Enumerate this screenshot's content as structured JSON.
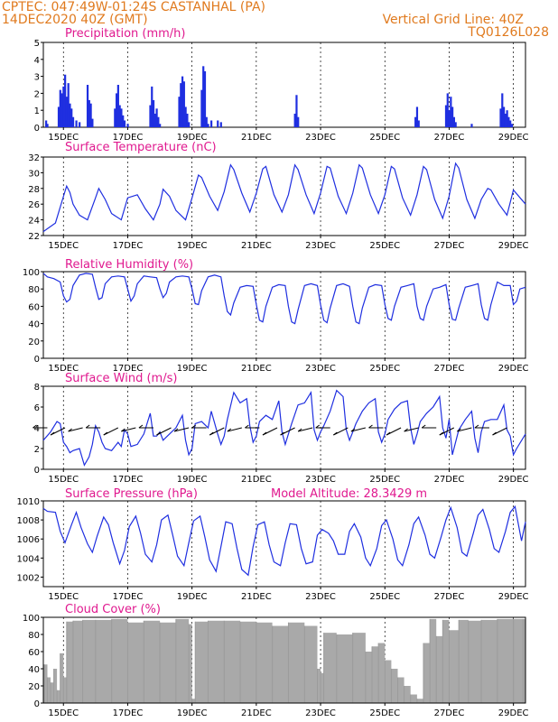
{
  "header": {
    "station": "CPTEC:   047:49W-01:24S   CASTANHAL (PA)",
    "run": "14DEC2020 40Z (GMT)",
    "grid_note": "Vertical Grid Line: 40Z",
    "code": "TQ0126L028"
  },
  "colors": {
    "header": "#e07a1e",
    "title": "#e0198f",
    "series": "#1f2fe0",
    "cloud": "#a9a9a9"
  },
  "chart_data": [
    {
      "type": "bar",
      "title": "Precipitation (mm/h)",
      "x_labels": [
        "15DEC",
        "17DEC",
        "19DEC",
        "21DEC",
        "23DEC",
        "25DEC",
        "27DEC",
        "29DEC"
      ],
      "x_unit": "days since 14DEC2020 00Z",
      "xlim": [
        0.375,
        15.375
      ],
      "ylim": [
        0,
        5
      ],
      "yticks": [
        "0",
        "1",
        "2",
        "3",
        "4",
        "5"
      ],
      "x": [
        0.46,
        0.5,
        0.85,
        0.9,
        0.95,
        1.0,
        1.05,
        1.1,
        1.15,
        1.2,
        1.25,
        1.3,
        1.4,
        1.5,
        1.75,
        1.8,
        1.85,
        1.9,
        2.6,
        2.65,
        2.7,
        2.75,
        2.8,
        2.85,
        2.9,
        3.0,
        3.7,
        3.75,
        3.8,
        3.85,
        3.9,
        3.95,
        4.0,
        4.6,
        4.65,
        4.7,
        4.75,
        4.8,
        4.85,
        4.9,
        5.3,
        5.35,
        5.4,
        5.45,
        5.5,
        5.6,
        5.8,
        5.9,
        8.2,
        8.25,
        8.3,
        11.95,
        12.0,
        12.05,
        12.9,
        12.95,
        13.0,
        13.05,
        13.1,
        13.15,
        13.2,
        13.7,
        14.6,
        14.65,
        14.7,
        14.75,
        14.8,
        14.85,
        14.9,
        14.95
      ],
      "values": [
        0.4,
        0.2,
        1.2,
        2.2,
        2.0,
        2.4,
        3.1,
        1.8,
        2.6,
        1.4,
        1.1,
        0.6,
        0.4,
        0.3,
        2.5,
        1.6,
        1.4,
        0.5,
        1.1,
        2.0,
        2.5,
        1.3,
        1.1,
        0.7,
        0.4,
        0.2,
        1.3,
        2.4,
        1.6,
        0.8,
        1.1,
        0.6,
        0.2,
        1.8,
        2.6,
        3.0,
        2.7,
        1.2,
        0.8,
        0.3,
        2.2,
        3.6,
        3.3,
        0.6,
        0.2,
        0.4,
        0.4,
        0.3,
        0.8,
        1.9,
        0.6,
        0.6,
        1.2,
        0.4,
        1.3,
        2.0,
        1.0,
        1.8,
        1.2,
        0.6,
        0.3,
        0.2,
        1.1,
        2.0,
        1.2,
        0.8,
        1.0,
        0.6,
        0.4,
        0.2
      ]
    },
    {
      "type": "line",
      "title": "Surface Temperature (nC)",
      "x_labels": [
        "15DEC",
        "17DEC",
        "19DEC",
        "21DEC",
        "23DEC",
        "25DEC",
        "27DEC",
        "29DEC"
      ],
      "x_unit": "days since 14DEC2020 00Z",
      "xlim": [
        0.375,
        15.375
      ],
      "ylim": [
        22,
        32
      ],
      "yticks": [
        "22",
        "24",
        "26",
        "28",
        "30",
        "32"
      ],
      "x": [
        0.375,
        0.75,
        1.0,
        1.1,
        1.2,
        1.3,
        1.5,
        1.75,
        2.0,
        2.1,
        2.3,
        2.5,
        2.8,
        3.0,
        3.3,
        3.55,
        3.8,
        4.0,
        4.1,
        4.3,
        4.5,
        4.8,
        5.0,
        5.2,
        5.3,
        5.55,
        5.8,
        6.0,
        6.2,
        6.3,
        6.55,
        6.8,
        7.0,
        7.2,
        7.3,
        7.55,
        7.8,
        8.0,
        8.2,
        8.3,
        8.55,
        8.8,
        9.0,
        9.2,
        9.3,
        9.55,
        9.8,
        10.0,
        10.2,
        10.3,
        10.55,
        10.8,
        11.0,
        11.2,
        11.3,
        11.55,
        11.8,
        12.0,
        12.2,
        12.3,
        12.55,
        12.8,
        13.0,
        13.2,
        13.3,
        13.55,
        13.8,
        14.0,
        14.2,
        14.3,
        14.55,
        14.8,
        15.0,
        15.375
      ],
      "values": [
        22.5,
        23.6,
        27.0,
        28.3,
        27.5,
        26.0,
        24.6,
        24.0,
        26.8,
        28.0,
        26.6,
        24.8,
        24.0,
        26.8,
        27.2,
        25.4,
        24.0,
        26.0,
        27.9,
        27.0,
        25.2,
        24.0,
        26.8,
        29.7,
        29.4,
        27.0,
        25.2,
        27.6,
        31.0,
        30.4,
        27.4,
        25.0,
        27.4,
        30.5,
        30.8,
        27.2,
        25.0,
        27.2,
        31.0,
        30.4,
        27.2,
        24.8,
        27.4,
        30.8,
        30.6,
        27.0,
        24.8,
        27.4,
        31.0,
        30.6,
        27.2,
        24.8,
        27.2,
        30.8,
        30.5,
        26.8,
        24.6,
        27.2,
        30.8,
        30.4,
        26.6,
        24.2,
        27.0,
        31.2,
        30.6,
        26.6,
        24.2,
        26.6,
        28.0,
        27.8,
        26.0,
        24.6,
        27.8,
        26.0
      ]
    },
    {
      "type": "line",
      "title": "Relative Humidity (%)",
      "x_labels": [
        "15DEC",
        "17DEC",
        "19DEC",
        "21DEC",
        "23DEC",
        "25DEC",
        "27DEC",
        "29DEC"
      ],
      "x_unit": "days since 14DEC2020 00Z",
      "xlim": [
        0.375,
        15.375
      ],
      "ylim": [
        0,
        100
      ],
      "yticks": [
        "0",
        "20",
        "40",
        "60",
        "80",
        "100"
      ],
      "x": [
        0.375,
        0.5,
        0.7,
        0.9,
        1.0,
        1.1,
        1.2,
        1.3,
        1.5,
        1.7,
        1.9,
        2.0,
        2.1,
        2.2,
        2.3,
        2.5,
        2.7,
        2.9,
        3.0,
        3.1,
        3.2,
        3.3,
        3.5,
        3.7,
        3.9,
        4.0,
        4.1,
        4.2,
        4.3,
        4.5,
        4.7,
        4.9,
        5.0,
        5.1,
        5.2,
        5.3,
        5.5,
        5.7,
        5.9,
        6.0,
        6.1,
        6.2,
        6.3,
        6.5,
        6.7,
        6.9,
        7.0,
        7.1,
        7.2,
        7.3,
        7.5,
        7.7,
        7.9,
        8.0,
        8.1,
        8.2,
        8.3,
        8.5,
        8.7,
        8.9,
        9.0,
        9.1,
        9.2,
        9.3,
        9.5,
        9.7,
        9.9,
        10.0,
        10.1,
        10.2,
        10.3,
        10.5,
        10.7,
        10.9,
        11.0,
        11.1,
        11.2,
        11.3,
        11.5,
        11.7,
        11.9,
        12.0,
        12.1,
        12.2,
        12.3,
        12.5,
        12.7,
        12.9,
        13.0,
        13.1,
        13.2,
        13.3,
        13.5,
        13.7,
        13.9,
        14.0,
        14.1,
        14.2,
        14.3,
        14.5,
        14.7,
        14.9,
        15.0,
        15.1,
        15.2,
        15.375
      ],
      "values": [
        98,
        94,
        92,
        88,
        72,
        65,
        68,
        84,
        96,
        98,
        97,
        82,
        68,
        70,
        86,
        94,
        95,
        94,
        80,
        66,
        72,
        86,
        95,
        94,
        93,
        80,
        70,
        75,
        88,
        94,
        95,
        94,
        80,
        63,
        62,
        78,
        94,
        96,
        94,
        72,
        54,
        50,
        64,
        82,
        84,
        83,
        62,
        44,
        42,
        60,
        82,
        85,
        84,
        60,
        42,
        40,
        56,
        84,
        86,
        84,
        62,
        44,
        41,
        58,
        84,
        86,
        83,
        60,
        42,
        40,
        58,
        82,
        85,
        84,
        62,
        46,
        44,
        60,
        82,
        84,
        86,
        60,
        46,
        44,
        60,
        80,
        82,
        85,
        62,
        45,
        44,
        58,
        82,
        84,
        86,
        62,
        46,
        44,
        62,
        88,
        84,
        84,
        62,
        66,
        80,
        82
      ]
    },
    {
      "type": "line",
      "title": "Surface Wind (m/s)",
      "x_labels": [
        "15DEC",
        "17DEC",
        "19DEC",
        "21DEC",
        "23DEC",
        "25DEC",
        "27DEC",
        "29DEC"
      ],
      "x_unit": "days since 14DEC2020 00Z",
      "xlim": [
        0.375,
        15.375
      ],
      "ylim": [
        0,
        8
      ],
      "yticks": [
        "0",
        "2",
        "4",
        "6",
        "8"
      ],
      "x": [
        0.375,
        0.6,
        0.8,
        0.9,
        1.0,
        1.1,
        1.2,
        1.3,
        1.5,
        1.65,
        1.8,
        1.9,
        2.0,
        2.1,
        2.2,
        2.3,
        2.5,
        2.7,
        2.8,
        2.9,
        3.0,
        3.1,
        3.3,
        3.5,
        3.7,
        3.8,
        3.9,
        4.0,
        4.1,
        4.3,
        4.5,
        4.7,
        4.8,
        4.9,
        5.0,
        5.1,
        5.3,
        5.5,
        5.6,
        5.8,
        5.9,
        6.0,
        6.1,
        6.3,
        6.5,
        6.7,
        6.8,
        6.9,
        7.0,
        7.1,
        7.3,
        7.5,
        7.7,
        7.8,
        7.9,
        8.0,
        8.1,
        8.3,
        8.5,
        8.7,
        8.8,
        8.9,
        9.0,
        9.1,
        9.3,
        9.5,
        9.7,
        9.8,
        9.9,
        10.0,
        10.1,
        10.3,
        10.5,
        10.7,
        10.8,
        10.9,
        11.0,
        11.1,
        11.3,
        11.5,
        11.7,
        11.8,
        11.9,
        12.0,
        12.1,
        12.3,
        12.5,
        12.7,
        12.8,
        12.9,
        13.0,
        13.1,
        13.3,
        13.5,
        13.7,
        13.8,
        13.9,
        14.0,
        14.1,
        14.3,
        14.5,
        14.7,
        14.8,
        14.9,
        15.0,
        15.1,
        15.375
      ],
      "values": [
        2.8,
        3.6,
        4.6,
        4.4,
        2.6,
        2.2,
        1.6,
        1.8,
        2.0,
        0.4,
        1.2,
        2.4,
        4.2,
        3.6,
        2.6,
        2.0,
        1.8,
        2.6,
        2.2,
        3.8,
        3.4,
        2.2,
        2.4,
        3.4,
        5.4,
        3.2,
        3.2,
        3.6,
        2.8,
        3.4,
        4.0,
        5.2,
        2.8,
        1.4,
        2.0,
        4.4,
        4.6,
        4.0,
        5.6,
        3.4,
        2.4,
        3.2,
        4.8,
        7.4,
        6.4,
        6.8,
        4.2,
        2.6,
        3.2,
        4.6,
        5.2,
        4.8,
        6.6,
        3.6,
        2.4,
        3.4,
        4.4,
        6.2,
        6.4,
        7.4,
        3.8,
        2.8,
        3.6,
        4.2,
        5.6,
        7.6,
        7.0,
        3.8,
        2.8,
        3.6,
        4.4,
        5.6,
        6.4,
        6.8,
        3.6,
        2.6,
        3.4,
        4.8,
        5.8,
        6.4,
        6.6,
        4.0,
        2.4,
        3.4,
        4.6,
        5.4,
        6.0,
        7.0,
        4.0,
        3.0,
        4.8,
        1.4,
        3.8,
        4.8,
        5.6,
        3.0,
        1.6,
        3.6,
        4.6,
        4.8,
        4.8,
        6.2,
        3.8,
        3.2,
        1.4,
        2.0,
        3.4
      ]
    },
    {
      "type": "line",
      "title": "Surface Pressure (hPa)",
      "annotation": "Model Altitude: 28.3429 m",
      "x_labels": [
        "15DEC",
        "17DEC",
        "19DEC",
        "21DEC",
        "23DEC",
        "25DEC",
        "27DEC",
        "29DEC"
      ],
      "x_unit": "days since 14DEC2020 00Z",
      "xlim": [
        0.375,
        15.375
      ],
      "ylim": [
        1001,
        1010
      ],
      "yticks": [
        "1002",
        "1004",
        "1006",
        "1008",
        "1010"
      ],
      "x": [
        0.375,
        0.5,
        0.75,
        0.9,
        1.05,
        1.25,
        1.4,
        1.55,
        1.75,
        1.9,
        2.05,
        2.25,
        2.4,
        2.55,
        2.75,
        2.9,
        3.05,
        3.25,
        3.4,
        3.55,
        3.75,
        3.9,
        4.05,
        4.25,
        4.4,
        4.55,
        4.75,
        4.9,
        5.05,
        5.25,
        5.4,
        5.55,
        5.75,
        5.9,
        6.05,
        6.25,
        6.4,
        6.55,
        6.75,
        6.9,
        7.05,
        7.25,
        7.4,
        7.55,
        7.75,
        7.9,
        8.05,
        8.25,
        8.4,
        8.55,
        8.75,
        8.9,
        9.05,
        9.25,
        9.4,
        9.55,
        9.75,
        9.9,
        10.05,
        10.25,
        10.4,
        10.55,
        10.75,
        10.9,
        11.05,
        11.25,
        11.4,
        11.55,
        11.75,
        11.9,
        12.05,
        12.25,
        12.4,
        12.55,
        12.75,
        12.9,
        13.05,
        13.25,
        13.4,
        13.55,
        13.75,
        13.9,
        14.05,
        14.25,
        14.4,
        14.55,
        14.75,
        14.9,
        15.05,
        15.25,
        15.375
      ],
      "values": [
        1009.2,
        1008.9,
        1008.8,
        1006.8,
        1005.6,
        1007.5,
        1008.8,
        1007.2,
        1005.5,
        1004.6,
        1006.3,
        1008.3,
        1007.5,
        1005.6,
        1003.4,
        1004.8,
        1007.3,
        1008.4,
        1006.6,
        1004.4,
        1003.6,
        1005.4,
        1008.0,
        1008.5,
        1006.4,
        1004.2,
        1003.2,
        1005.6,
        1007.9,
        1008.4,
        1006.2,
        1003.8,
        1002.6,
        1005.2,
        1007.8,
        1007.6,
        1005.0,
        1002.8,
        1002.2,
        1005.2,
        1007.5,
        1007.8,
        1005.4,
        1003.6,
        1003.2,
        1005.6,
        1007.6,
        1007.5,
        1005.0,
        1003.4,
        1003.6,
        1006.4,
        1007.0,
        1006.6,
        1005.8,
        1004.4,
        1004.4,
        1006.8,
        1007.6,
        1006.2,
        1004.0,
        1003.2,
        1005.0,
        1007.4,
        1008.0,
        1006.0,
        1003.8,
        1003.2,
        1005.4,
        1007.6,
        1008.3,
        1006.4,
        1004.4,
        1004.0,
        1006.2,
        1008.0,
        1009.3,
        1007.2,
        1004.6,
        1004.2,
        1006.6,
        1008.5,
        1009.1,
        1007.0,
        1005.0,
        1004.6,
        1006.8,
        1008.8,
        1009.4,
        1005.8,
        1007.8
      ]
    },
    {
      "type": "bar",
      "title": "Cloud Cover (%)",
      "x_labels": [
        "15DEC",
        "17DEC",
        "19DEC",
        "21DEC",
        "23DEC",
        "25DEC",
        "27DEC",
        "29DEC"
      ],
      "x_unit": "days since 14DEC2020 00Z",
      "xlim": [
        0.375,
        15.375
      ],
      "ylim": [
        0,
        100
      ],
      "yticks": [
        "0",
        "20",
        "40",
        "60",
        "80",
        "100"
      ],
      "x": [
        0.4,
        0.5,
        0.6,
        0.7,
        0.8,
        0.9,
        1.0,
        1.1,
        1.3,
        1.6,
        2.0,
        2.5,
        3.0,
        3.5,
        4.0,
        4.5,
        4.9,
        5.0,
        5.1,
        5.5,
        6.0,
        6.5,
        7.0,
        7.5,
        8.0,
        8.5,
        8.9,
        9.0,
        9.1,
        9.5,
        10.0,
        10.4,
        10.6,
        10.8,
        11.0,
        11.2,
        11.4,
        11.6,
        11.8,
        12.0,
        12.2,
        12.4,
        12.6,
        12.8,
        13.0,
        13.3,
        13.6,
        14.0,
        14.5,
        15.0,
        15.3
      ],
      "values": [
        45,
        30,
        24,
        40,
        15,
        58,
        30,
        95,
        96,
        97,
        97,
        98,
        94,
        96,
        94,
        98,
        92,
        5,
        95,
        96,
        96,
        95,
        94,
        90,
        94,
        90,
        40,
        35,
        82,
        80,
        82,
        60,
        66,
        70,
        50,
        40,
        30,
        20,
        10,
        5,
        70,
        98,
        78,
        97,
        85,
        97,
        96,
        97,
        98,
        98,
        98
      ]
    }
  ]
}
